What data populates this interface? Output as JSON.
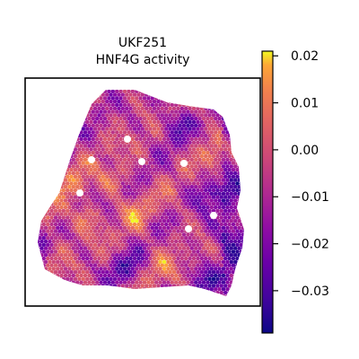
{
  "chart_data": {
    "type": "heatmap",
    "subtype": "spatial-hexbin",
    "title": "UKF251",
    "subtitle": "HNF4G activity",
    "colormap": "plasma",
    "colorbar": {
      "range": [
        -0.039,
        0.021
      ],
      "ticks": [
        0.02,
        0.01,
        0.0,
        -0.01,
        -0.02,
        -0.03
      ],
      "tick_labels": [
        "0.02",
        "0.01",
        "0.00",
        "−0.01",
        "−0.02",
        "−0.03"
      ],
      "placement": "right"
    },
    "axes": {
      "frame": true,
      "ticks_visible": false,
      "grid": false
    },
    "value_summary": {
      "typical_range": [
        -0.03,
        0.015
      ],
      "description": "Spots mostly magenta/pink (around -0.01 to 0.00) with orange-yellow patches (0.005 to 0.02) and purple-blue regions (-0.02 to -0.035), darkest toward the top band and lower-right edge"
    }
  }
}
